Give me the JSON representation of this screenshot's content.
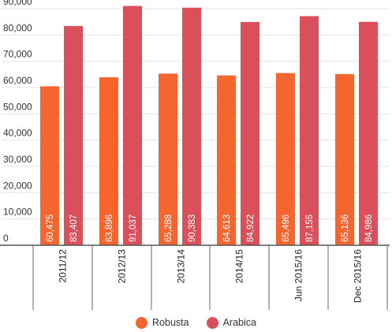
{
  "chart_data": {
    "type": "bar",
    "categories": [
      "2011/12",
      "2012/13",
      "2013/14",
      "2014/15",
      "Jun 2015/16",
      "Dec 2015/16"
    ],
    "series": [
      {
        "name": "Robusta",
        "color": "#f4652f",
        "values": [
          60475,
          63896,
          65288,
          64613,
          65496,
          65136
        ],
        "labels": [
          "60,475",
          "63,896",
          "65,288",
          "64,613",
          "65,496",
          "65,136"
        ]
      },
      {
        "name": "Arabica",
        "color": "#d9505a",
        "values": [
          83407,
          91037,
          90383,
          84922,
          87155,
          84986
        ],
        "labels": [
          "83,407",
          "91,037",
          "90,383",
          "84,922",
          "87,155",
          "84,986"
        ]
      }
    ],
    "yticks": [
      "0",
      "10,000",
      "20,000",
      "30,000",
      "40,000",
      "50,000",
      "60,000",
      "70,000",
      "80,000",
      "90,000"
    ],
    "ylim": [
      0,
      90000
    ],
    "grid": true,
    "legend_position": "bottom"
  }
}
